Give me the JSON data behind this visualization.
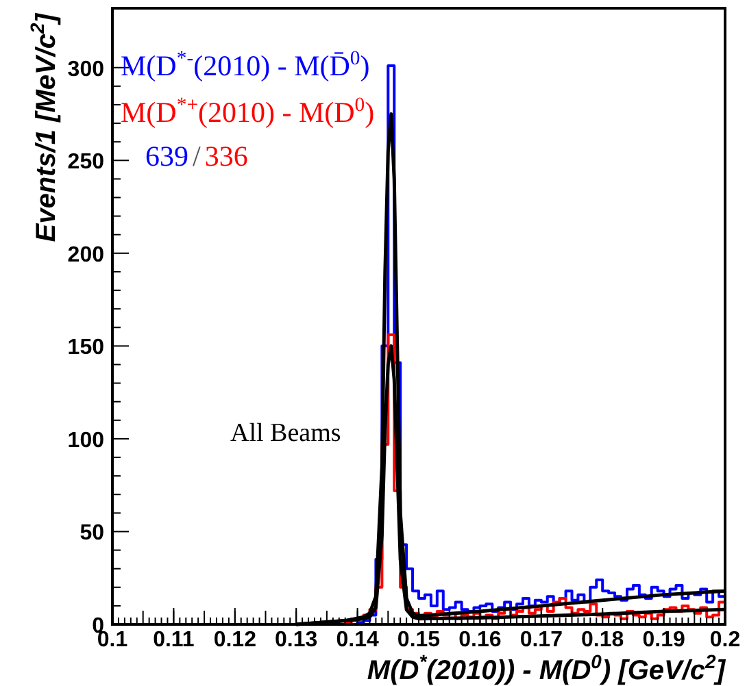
{
  "chart_data": {
    "type": "histogram",
    "xlabel": "M(D$^{*}$(2010)) - M(D$^{0}$)  [GeV/c$^{2}$]",
    "ylabel": "Events/1 [MeV/c$^{2}$]",
    "bins": [
      0.1,
      0.101,
      0.102,
      0.103,
      0.104,
      0.105,
      0.106,
      0.107,
      0.108,
      0.109,
      0.11,
      0.111,
      0.112,
      0.113,
      0.114,
      0.115,
      0.116,
      0.117,
      0.118,
      0.119,
      0.12,
      0.121,
      0.122,
      0.123,
      0.124,
      0.125,
      0.126,
      0.127,
      0.128,
      0.129,
      0.13,
      0.131,
      0.132,
      0.133,
      0.134,
      0.135,
      0.136,
      0.137,
      0.138,
      0.139,
      0.14,
      0.141,
      0.142,
      0.143,
      0.144,
      0.145,
      0.146,
      0.147,
      0.148,
      0.149,
      0.15,
      0.151,
      0.152,
      0.153,
      0.154,
      0.155,
      0.156,
      0.157,
      0.158,
      0.159,
      0.16,
      0.161,
      0.162,
      0.163,
      0.164,
      0.165,
      0.166,
      0.167,
      0.168,
      0.169,
      0.17,
      0.171,
      0.172,
      0.173,
      0.174,
      0.175,
      0.176,
      0.177,
      0.178,
      0.179,
      0.18,
      0.181,
      0.182,
      0.183,
      0.184,
      0.185,
      0.186,
      0.187,
      0.188,
      0.189,
      0.19,
      0.191,
      0.192,
      0.193,
      0.194,
      0.195,
      0.196,
      0.197,
      0.198,
      0.199,
      0.2
    ],
    "series": [
      {
        "name": "M(D$^{*-}$(2010) - M(D̄$^{0}$)",
        "color": "#0000ff",
        "values": [
          0,
          0,
          0,
          0,
          0,
          0,
          0,
          0,
          0,
          0,
          0,
          0,
          0,
          0,
          0,
          0,
          0,
          0,
          0,
          0,
          0,
          0,
          0,
          0,
          0,
          0,
          0,
          0,
          0,
          0,
          0,
          0,
          0,
          0,
          0,
          0,
          0,
          0,
          0,
          0,
          1,
          2,
          5,
          35,
          150,
          301,
          141,
          43,
          30,
          18,
          14,
          16,
          10,
          18,
          8,
          9,
          12,
          8,
          7,
          9,
          10,
          11,
          7,
          9,
          12,
          8,
          11,
          14,
          10,
          13,
          12,
          15,
          11,
          14,
          18,
          13,
          16,
          12,
          20,
          24,
          18,
          17,
          15,
          13,
          19,
          21,
          16,
          14,
          20,
          18,
          15,
          19,
          21,
          14,
          17,
          16,
          19,
          12,
          18,
          15
        ]
      },
      {
        "name": "M(D$^{*+}$(2010) - M(D$^{0}$)",
        "color": "#ff0000",
        "values": [
          0,
          0,
          0,
          0,
          0,
          0,
          0,
          0,
          0,
          0,
          0,
          0,
          0,
          0,
          0,
          0,
          0,
          0,
          0,
          0,
          0,
          0,
          0,
          0,
          0,
          0,
          0,
          0,
          0,
          0,
          0,
          0,
          0,
          0,
          0,
          0,
          0,
          0,
          1,
          2,
          3,
          5,
          8,
          20,
          97,
          156,
          72,
          20,
          8,
          6,
          5,
          6,
          4,
          7,
          5,
          6,
          3,
          5,
          4,
          6,
          4,
          5,
          3,
          6,
          8,
          5,
          7,
          9,
          6,
          8,
          10,
          7,
          12,
          14,
          9,
          6,
          8,
          7,
          11,
          5,
          4,
          6,
          5,
          3,
          7,
          5,
          4,
          6,
          3,
          5,
          8,
          9,
          7,
          10,
          8,
          6,
          9,
          4,
          5,
          12
        ]
      },
      {
        "type": "line",
        "color": "#000000",
        "x": [
          0.13,
          0.138,
          0.141,
          0.142,
          0.143,
          0.144,
          0.1445,
          0.145,
          0.1455,
          0.146,
          0.1465,
          0.147,
          0.148,
          0.149,
          0.15,
          0.16,
          0.17,
          0.18,
          0.19,
          0.2
        ],
        "values": [
          0,
          2,
          4,
          6,
          15,
          85,
          190,
          255,
          275,
          240,
          150,
          60,
          14,
          6,
          4.5,
          7,
          10,
          13,
          16,
          18
        ]
      },
      {
        "type": "line",
        "color": "#000000",
        "x": [
          0.13,
          0.138,
          0.141,
          0.142,
          0.143,
          0.144,
          0.1445,
          0.145,
          0.1455,
          0.146,
          0.1465,
          0.147,
          0.148,
          0.149,
          0.15,
          0.16,
          0.17,
          0.18,
          0.19,
          0.2
        ],
        "values": [
          0,
          2,
          3,
          4,
          9,
          48,
          105,
          140,
          150,
          132,
          84,
          35,
          8,
          4,
          3,
          3.5,
          4.5,
          5.5,
          7,
          8
        ]
      }
    ],
    "annotations": [
      "639",
      "/",
      "336",
      "All Beams"
    ],
    "xlim": [
      0.1,
      0.2
    ],
    "xticks": [
      0.1,
      0.11,
      0.12,
      0.13,
      0.14,
      0.15,
      0.16,
      0.17,
      0.18,
      0.19,
      0.2
    ],
    "ylim": [
      0,
      332
    ],
    "yticks": [
      0,
      50,
      100,
      150,
      200,
      250,
      300
    ],
    "grid": false,
    "legend": "top left"
  }
}
